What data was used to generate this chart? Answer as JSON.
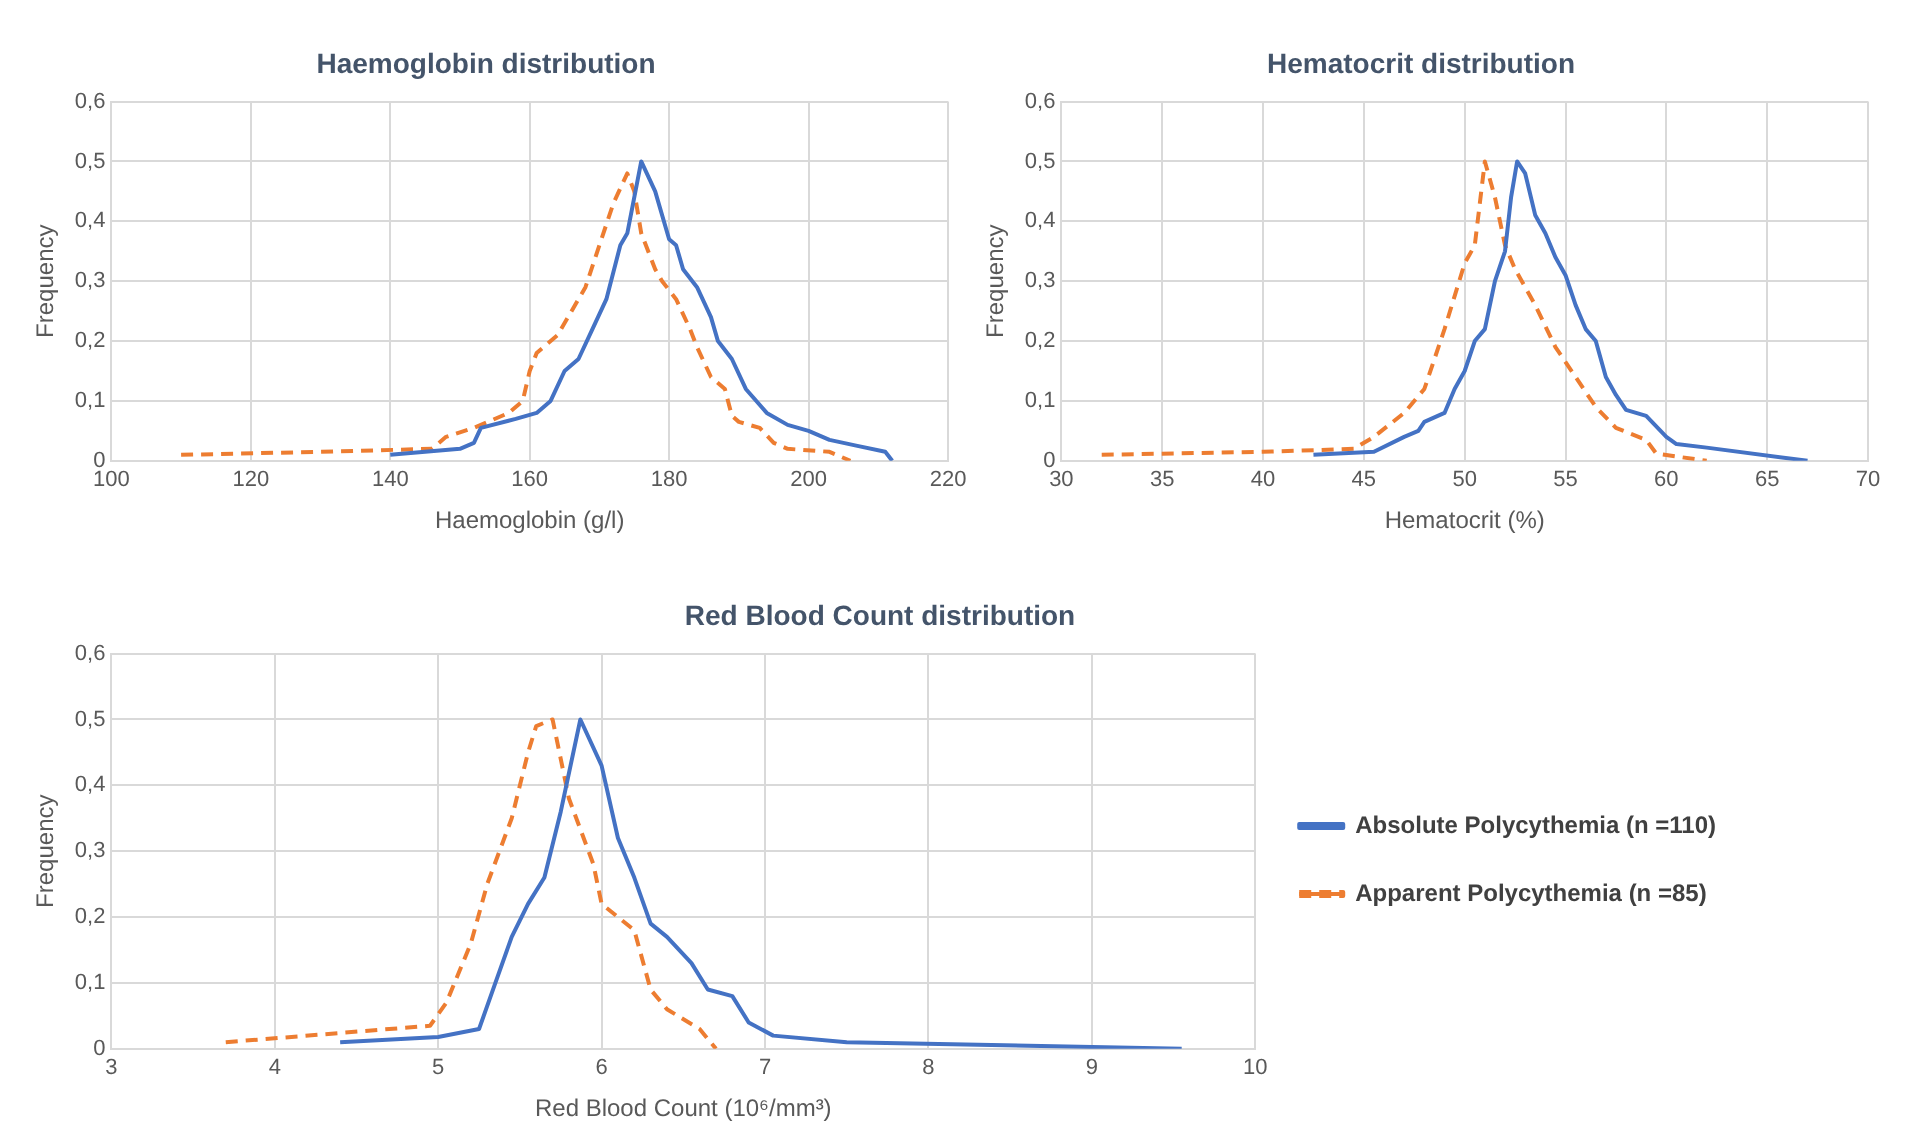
{
  "chart_data": [
    {
      "type": "line",
      "title": "Haemoglobin distribution",
      "xlabel": "Haemoglobin (g/l)",
      "ylabel": "Frequency",
      "xlim": [
        100,
        220
      ],
      "xticks": [
        100,
        120,
        140,
        160,
        180,
        200,
        220
      ],
      "ylim": [
        0,
        0.6
      ],
      "yticks": [
        {
          "value": 0,
          "label": "0"
        },
        {
          "value": 0.1,
          "label": "0,1"
        },
        {
          "value": 0.2,
          "label": "0,2"
        },
        {
          "value": 0.3,
          "label": "0,3"
        },
        {
          "value": 0.4,
          "label": "0,4"
        },
        {
          "value": 0.5,
          "label": "0,5"
        },
        {
          "value": 0.6,
          "label": "0,6"
        }
      ],
      "grid": true,
      "legend": false,
      "marker": "none",
      "series": [
        {
          "color": "#4472c4",
          "line_style": "solid",
          "x": [
            140,
            150,
            152,
            153,
            158,
            161,
            163,
            165,
            167,
            169,
            171,
            173,
            174,
            175,
            176,
            178,
            180,
            181,
            182,
            184,
            186,
            187,
            189,
            191,
            194,
            197,
            200,
            203,
            207,
            211,
            212
          ],
          "values": [
            0.01,
            0.02,
            0.03,
            0.055,
            0.07,
            0.08,
            0.1,
            0.15,
            0.17,
            0.22,
            0.27,
            0.36,
            0.38,
            0.44,
            0.5,
            0.45,
            0.37,
            0.36,
            0.32,
            0.29,
            0.24,
            0.2,
            0.17,
            0.12,
            0.08,
            0.06,
            0.05,
            0.035,
            0.025,
            0.015,
            0
          ]
        },
        {
          "color": "#ed7d31",
          "line_style": "dashed",
          "x": [
            110,
            130,
            146,
            148,
            152,
            157,
            159,
            160,
            161,
            164,
            166,
            168,
            170,
            172,
            174,
            175,
            176,
            178,
            179,
            181,
            183,
            184,
            186,
            188,
            189,
            190,
            193,
            195,
            197,
            203,
            206
          ],
          "values": [
            0.01,
            0.015,
            0.02,
            0.04,
            0.055,
            0.08,
            0.1,
            0.15,
            0.18,
            0.21,
            0.25,
            0.29,
            0.36,
            0.43,
            0.48,
            0.45,
            0.38,
            0.32,
            0.3,
            0.27,
            0.22,
            0.19,
            0.14,
            0.12,
            0.075,
            0.065,
            0.055,
            0.03,
            0.02,
            0.015,
            0
          ]
        }
      ]
    },
    {
      "type": "line",
      "title": "Hematocrit distribution",
      "xlabel": "Hematocrit (%)",
      "ylabel": "Frequency",
      "xlim": [
        30,
        70
      ],
      "xticks": [
        30,
        35,
        40,
        45,
        50,
        55,
        60,
        65,
        70
      ],
      "ylim": [
        0,
        0.6
      ],
      "yticks": [
        {
          "value": 0,
          "label": "0"
        },
        {
          "value": 0.1,
          "label": "0,1"
        },
        {
          "value": 0.2,
          "label": "0,2"
        },
        {
          "value": 0.3,
          "label": "0,3"
        },
        {
          "value": 0.4,
          "label": "0,4"
        },
        {
          "value": 0.5,
          "label": "0,5"
        },
        {
          "value": 0.6,
          "label": "0,6"
        }
      ],
      "grid": true,
      "legend": false,
      "marker": "none",
      "series": [
        {
          "color": "#4472c4",
          "line_style": "solid",
          "x": [
            42.5,
            45.5,
            47,
            47.7,
            48,
            49,
            49.5,
            50,
            50.5,
            51,
            51.5,
            52,
            52.3,
            52.6,
            53,
            53.5,
            54,
            54.5,
            55,
            55.5,
            56,
            56.5,
            57,
            57.5,
            58,
            59,
            60,
            60.5,
            62,
            67
          ],
          "values": [
            0.01,
            0.015,
            0.04,
            0.05,
            0.065,
            0.08,
            0.12,
            0.15,
            0.2,
            0.22,
            0.3,
            0.35,
            0.44,
            0.5,
            0.48,
            0.41,
            0.38,
            0.34,
            0.31,
            0.26,
            0.22,
            0.2,
            0.14,
            0.11,
            0.085,
            0.075,
            0.04,
            0.028,
            0.022,
            0
          ]
        },
        {
          "color": "#ed7d31",
          "line_style": "dashed",
          "x": [
            32,
            40,
            44.5,
            45.5,
            47,
            48,
            49,
            50,
            50.5,
            51,
            51.5,
            52,
            52.5,
            53.5,
            54.5,
            55.5,
            56.5,
            57.5,
            59,
            59.5,
            62
          ],
          "values": [
            0.01,
            0.015,
            0.02,
            0.04,
            0.08,
            0.12,
            0.22,
            0.33,
            0.36,
            0.5,
            0.44,
            0.36,
            0.32,
            0.26,
            0.19,
            0.14,
            0.09,
            0.055,
            0.035,
            0.012,
            0
          ]
        }
      ]
    },
    {
      "type": "line",
      "title": "Red Blood Count distribution",
      "xlabel": "Red Blood Count (10⁶/mm³)",
      "ylabel": "Frequency",
      "xlim": [
        3,
        10
      ],
      "xticks": [
        3,
        4,
        5,
        6,
        7,
        8,
        9,
        10
      ],
      "ylim": [
        0,
        0.6
      ],
      "yticks": [
        {
          "value": 0,
          "label": "0"
        },
        {
          "value": 0.1,
          "label": "0,1"
        },
        {
          "value": 0.2,
          "label": "0,2"
        },
        {
          "value": 0.3,
          "label": "0,3"
        },
        {
          "value": 0.4,
          "label": "0,4"
        },
        {
          "value": 0.5,
          "label": "0,5"
        },
        {
          "value": 0.6,
          "label": "0,6"
        }
      ],
      "grid": true,
      "legend": "right",
      "marker": "none",
      "series": [
        {
          "name": "Absolute Polycythemia (n =110)",
          "color": "#4472c4",
          "line_style": "solid",
          "x": [
            4.4,
            5,
            5.25,
            5.35,
            5.45,
            5.55,
            5.65,
            5.75,
            5.87,
            6,
            6.1,
            6.2,
            6.3,
            6.4,
            6.55,
            6.65,
            6.8,
            6.9,
            7.05,
            7.5,
            9.55
          ],
          "values": [
            0.01,
            0.018,
            0.03,
            0.1,
            0.17,
            0.22,
            0.26,
            0.36,
            0.5,
            0.43,
            0.32,
            0.26,
            0.19,
            0.17,
            0.13,
            0.09,
            0.08,
            0.04,
            0.02,
            0.01,
            0
          ]
        },
        {
          "name": "Apparent Polycythemia (n =85)",
          "color": "#ed7d31",
          "line_style": "dashed",
          "x": [
            3.7,
            4.95,
            5.05,
            5.2,
            5.3,
            5.45,
            5.55,
            5.6,
            5.7,
            5.8,
            5.95,
            6,
            6.2,
            6.3,
            6.4,
            6.6,
            6.7
          ],
          "values": [
            0.01,
            0.035,
            0.07,
            0.16,
            0.25,
            0.35,
            0.45,
            0.49,
            0.5,
            0.38,
            0.28,
            0.22,
            0.18,
            0.09,
            0.06,
            0.03,
            0
          ]
        }
      ]
    }
  ]
}
